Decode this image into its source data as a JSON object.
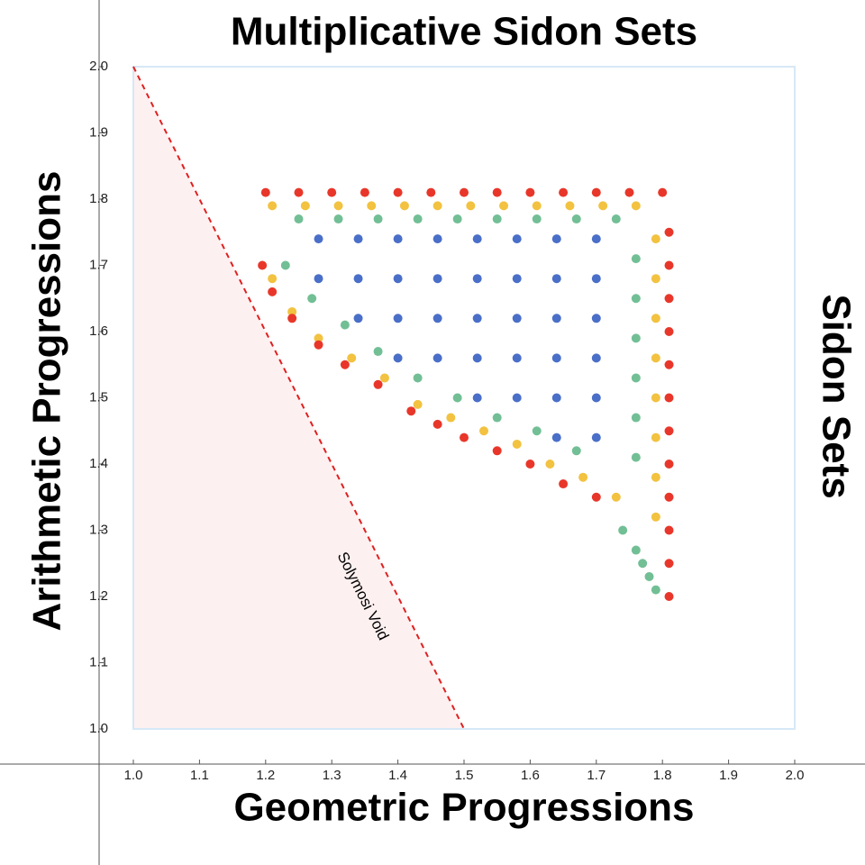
{
  "chart_data": {
    "type": "scatter",
    "title": "Multiplicative Sidon Sets",
    "xlabel": "Geometric Progressions",
    "ylabel": "Arithmetic Progressions",
    "y2label": "Sidon Sets",
    "annotation": "Solymosi Void",
    "xlim": [
      1,
      2
    ],
    "ylim": [
      1,
      2
    ],
    "xticks": [
      {
        "value": 1,
        "label": "1.0"
      },
      1.1,
      1.2,
      1.3,
      1.4,
      1.5,
      1.6,
      1.7,
      1.8,
      1.9,
      {
        "value": 2,
        "label": "2.0"
      }
    ],
    "yticks": [
      {
        "value": 1,
        "label": "1.0"
      },
      1.1,
      1.2,
      1.3,
      1.4,
      1.5,
      1.6,
      1.7,
      1.8,
      1.9,
      {
        "value": 2,
        "label": "2.0"
      }
    ],
    "frame_color": "#d6e8f7",
    "reference_line": {
      "x": [
        1,
        1.5
      ],
      "y": [
        2,
        1
      ],
      "color": "#e02020",
      "fill": "#fdf0f0"
    },
    "series": [
      {
        "color": "#4a6fc8",
        "x": [
          1.28,
          1.28,
          1.34,
          1.34,
          1.34,
          1.4,
          1.4,
          1.4,
          1.4,
          1.46,
          1.46,
          1.46,
          1.46,
          1.52,
          1.52,
          1.52,
          1.52,
          1.52,
          1.58,
          1.58,
          1.58,
          1.58,
          1.58,
          1.64,
          1.64,
          1.64,
          1.64,
          1.64,
          1.64,
          1.7,
          1.7,
          1.7,
          1.7,
          1.7,
          1.7
        ],
        "y": [
          1.74,
          1.68,
          1.74,
          1.68,
          1.62,
          1.74,
          1.68,
          1.62,
          1.56,
          1.74,
          1.68,
          1.62,
          1.56,
          1.74,
          1.68,
          1.62,
          1.56,
          1.5,
          1.74,
          1.68,
          1.62,
          1.56,
          1.5,
          1.74,
          1.68,
          1.62,
          1.56,
          1.5,
          1.44,
          1.74,
          1.68,
          1.62,
          1.56,
          1.5,
          1.44
        ]
      },
      {
        "color": "#72bf95",
        "x": [
          1.25,
          1.31,
          1.37,
          1.43,
          1.49,
          1.55,
          1.61,
          1.67,
          1.73,
          1.76,
          1.76,
          1.76,
          1.76,
          1.76,
          1.76,
          1.23,
          1.27,
          1.32,
          1.37,
          1.43,
          1.49,
          1.55,
          1.61,
          1.67,
          1.74,
          1.76,
          1.77,
          1.78,
          1.79
        ],
        "y": [
          1.77,
          1.77,
          1.77,
          1.77,
          1.77,
          1.77,
          1.77,
          1.77,
          1.77,
          1.71,
          1.65,
          1.59,
          1.53,
          1.47,
          1.41,
          1.7,
          1.65,
          1.61,
          1.57,
          1.53,
          1.5,
          1.47,
          1.45,
          1.42,
          1.3,
          1.27,
          1.25,
          1.23,
          1.21
        ]
      },
      {
        "color": "#f2c240",
        "x": [
          1.21,
          1.26,
          1.31,
          1.36,
          1.41,
          1.46,
          1.51,
          1.56,
          1.61,
          1.66,
          1.71,
          1.76,
          1.79,
          1.79,
          1.79,
          1.79,
          1.79,
          1.79,
          1.79,
          1.79,
          1.21,
          1.24,
          1.28,
          1.33,
          1.38,
          1.43,
          1.48,
          1.53,
          1.58,
          1.63,
          1.68,
          1.73
        ],
        "y": [
          1.79,
          1.79,
          1.79,
          1.79,
          1.79,
          1.79,
          1.79,
          1.79,
          1.79,
          1.79,
          1.79,
          1.79,
          1.74,
          1.68,
          1.62,
          1.56,
          1.5,
          1.44,
          1.38,
          1.32,
          1.68,
          1.63,
          1.59,
          1.56,
          1.53,
          1.49,
          1.47,
          1.45,
          1.43,
          1.4,
          1.38,
          1.35
        ]
      },
      {
        "color": "#e8372a",
        "x": [
          1.2,
          1.25,
          1.3,
          1.35,
          1.4,
          1.45,
          1.5,
          1.55,
          1.6,
          1.65,
          1.7,
          1.75,
          1.8,
          1.81,
          1.81,
          1.81,
          1.81,
          1.81,
          1.81,
          1.81,
          1.81,
          1.81,
          1.81,
          1.81,
          1.81,
          1.195,
          1.21,
          1.24,
          1.28,
          1.32,
          1.37,
          1.42,
          1.46,
          1.5,
          1.55,
          1.6,
          1.65,
          1.7
        ],
        "y": [
          1.81,
          1.81,
          1.81,
          1.81,
          1.81,
          1.81,
          1.81,
          1.81,
          1.81,
          1.81,
          1.81,
          1.81,
          1.81,
          1.75,
          1.7,
          1.65,
          1.6,
          1.55,
          1.5,
          1.45,
          1.4,
          1.35,
          1.3,
          1.25,
          1.2,
          1.7,
          1.66,
          1.62,
          1.58,
          1.55,
          1.52,
          1.48,
          1.46,
          1.44,
          1.42,
          1.4,
          1.37,
          1.35
        ]
      }
    ]
  }
}
